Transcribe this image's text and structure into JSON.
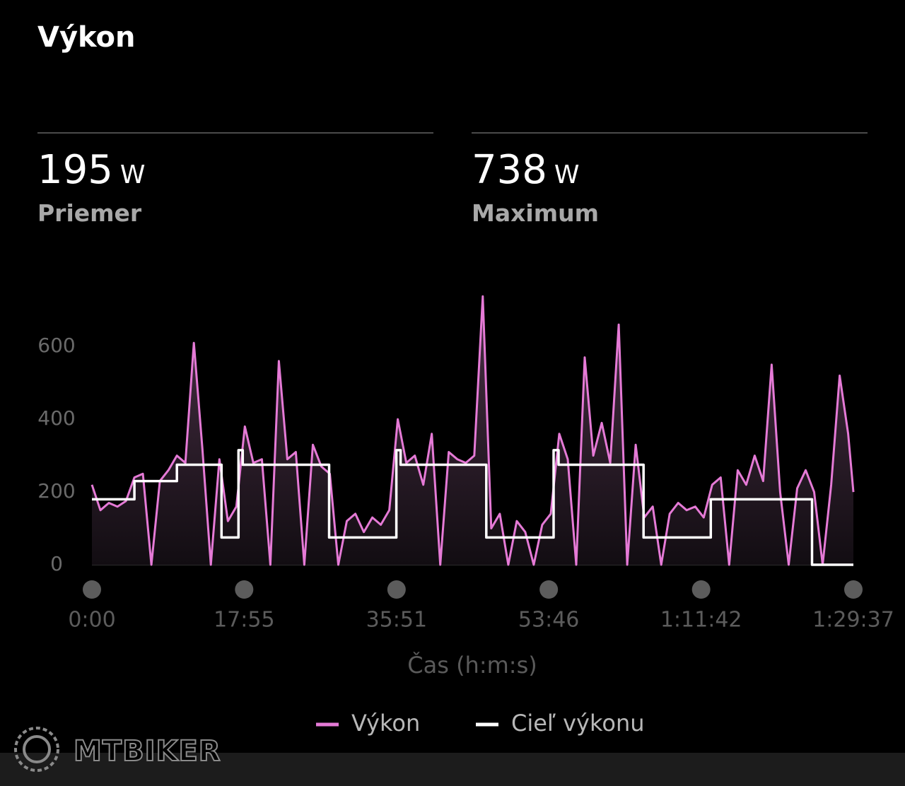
{
  "header": {
    "title": "Výkon"
  },
  "stats": [
    {
      "value": 195,
      "unit": "W",
      "label": "Priemer"
    },
    {
      "value": 738,
      "unit": "W",
      "label": "Maximum"
    }
  ],
  "chart_data": {
    "type": "line",
    "x_label": "Čas (h:m:s)",
    "xlim": [
      0,
      5377
    ],
    "xticks": [
      {
        "value": 0,
        "label": "0:00"
      },
      {
        "value": 1075,
        "label": "17:55"
      },
      {
        "value": 2151,
        "label": "35:51"
      },
      {
        "value": 3226,
        "label": "53:46"
      },
      {
        "value": 4302,
        "label": "1:11:42"
      },
      {
        "value": 5377,
        "label": "1:29:37"
      }
    ],
    "ylim": [
      0,
      750
    ],
    "yticks": [
      0,
      200,
      400,
      600
    ],
    "grid": false,
    "legend": "bottom",
    "series": [
      {
        "name": "Výkon",
        "color": "#e57ad6",
        "area": true,
        "x": [
          0,
          60,
          120,
          180,
          240,
          300,
          360,
          420,
          480,
          540,
          600,
          660,
          720,
          780,
          840,
          900,
          960,
          1020,
          1080,
          1140,
          1200,
          1260,
          1320,
          1380,
          1440,
          1500,
          1560,
          1620,
          1680,
          1740,
          1800,
          1860,
          1920,
          1980,
          2040,
          2100,
          2160,
          2220,
          2280,
          2340,
          2400,
          2460,
          2520,
          2580,
          2640,
          2700,
          2760,
          2820,
          2880,
          2940,
          3000,
          3060,
          3120,
          3180,
          3240,
          3300,
          3360,
          3420,
          3480,
          3540,
          3600,
          3660,
          3720,
          3780,
          3840,
          3900,
          3960,
          4020,
          4080,
          4140,
          4200,
          4260,
          4320,
          4380,
          4440,
          4500,
          4560,
          4620,
          4680,
          4740,
          4800,
          4860,
          4920,
          4980,
          5040,
          5100,
          5160,
          5220,
          5280,
          5340,
          5377
        ],
        "values": [
          220,
          150,
          170,
          160,
          175,
          240,
          250,
          0,
          230,
          260,
          300,
          280,
          610,
          320,
          0,
          290,
          120,
          160,
          380,
          280,
          290,
          0,
          560,
          290,
          310,
          0,
          330,
          270,
          250,
          0,
          120,
          140,
          90,
          130,
          110,
          150,
          400,
          280,
          300,
          220,
          360,
          0,
          310,
          290,
          280,
          300,
          738,
          100,
          140,
          0,
          120,
          90,
          0,
          110,
          140,
          360,
          290,
          0,
          570,
          300,
          390,
          280,
          660,
          0,
          330,
          130,
          160,
          0,
          140,
          170,
          150,
          160,
          130,
          220,
          240,
          0,
          260,
          220,
          300,
          230,
          550,
          200,
          0,
          210,
          260,
          200,
          0,
          220,
          520,
          360,
          200
        ]
      },
      {
        "name": "Cieľ výkonu",
        "color": "#ffffff",
        "area": false,
        "x": [
          0,
          300,
          300,
          600,
          600,
          915,
          915,
          1035,
          1035,
          1065,
          1065,
          1675,
          1675,
          2150,
          2150,
          2180,
          2180,
          2785,
          2785,
          3260,
          3260,
          3295,
          3295,
          3895,
          3895,
          4370,
          4370,
          5085,
          5085,
          5377
        ],
        "values": [
          180,
          180,
          230,
          230,
          275,
          275,
          75,
          75,
          315,
          315,
          275,
          275,
          75,
          75,
          315,
          315,
          275,
          275,
          75,
          75,
          315,
          315,
          275,
          275,
          75,
          75,
          180,
          180,
          0,
          0
        ]
      }
    ]
  },
  "watermark": "MTBIKER"
}
